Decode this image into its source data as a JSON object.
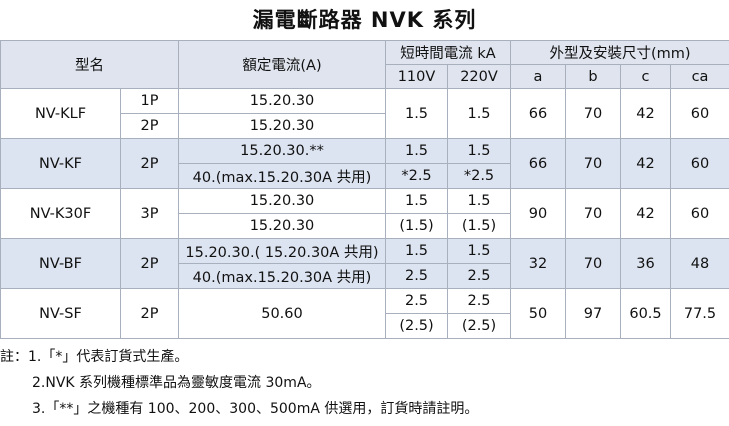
{
  "title": "漏電斷路器  NVK 系列",
  "table": {
    "headers": {
      "model": "型名",
      "current": "額定電流(A)",
      "short_time": "短時間電流 kA",
      "v110": "110V",
      "v220": "220V",
      "dimensions": "外型及安裝尺寸(mm)",
      "a": "a",
      "b": "b",
      "c": "c",
      "ca": "ca"
    },
    "rows": [
      {
        "model": "NV-KLF",
        "poles": [
          "1P",
          "2P"
        ],
        "current": [
          "15.20.30",
          "15.20.30"
        ],
        "ka110": [
          "1.5"
        ],
        "ka220": [
          "1.5"
        ],
        "a": 66,
        "b": 70,
        "c": 42,
        "ca": 60
      },
      {
        "model": "NV-KF",
        "poles": [
          "2P"
        ],
        "current": [
          "15.20.30.**",
          "40.(max.15.20.30A 共用)"
        ],
        "ka110": [
          "1.5",
          "*2.5"
        ],
        "ka220": [
          "1.5",
          "*2.5"
        ],
        "a": 66,
        "b": 70,
        "c": 42,
        "ca": 60
      },
      {
        "model": "NV-K30F",
        "poles": [
          "3P"
        ],
        "current": [
          "15.20.30",
          "15.20.30"
        ],
        "ka110": [
          "1.5",
          "(1.5)"
        ],
        "ka220": [
          "1.5",
          "(1.5)"
        ],
        "a": 90,
        "b": 70,
        "c": 42,
        "ca": 60
      },
      {
        "model": "NV-BF",
        "poles": [
          "2P"
        ],
        "current": [
          "15.20.30.( 15.20.30A 共用)",
          "40.(max.15.20.30A 共用)"
        ],
        "ka110": [
          "1.5",
          "2.5"
        ],
        "ka220": [
          "1.5",
          "2.5"
        ],
        "a": 32,
        "b": 70,
        "c": 36,
        "ca": 48
      },
      {
        "model": "NV-SF",
        "poles": [
          "2P"
        ],
        "current": [
          "50.60"
        ],
        "ka110": [
          "2.5",
          "(2.5)"
        ],
        "ka220": [
          "2.5",
          "(2.5)"
        ],
        "a": 50,
        "b": 97,
        "c": 60.5,
        "ca": 77.5
      }
    ]
  },
  "notes": {
    "label": "註：",
    "items": [
      "1.「*」代表訂貨式生產。",
      "2.NVK 系列機種標準品為靈敏度電流 30mA。",
      "3.「**」之機種有 100、200、300、500mA 供選用，訂貨時請註明。"
    ]
  }
}
